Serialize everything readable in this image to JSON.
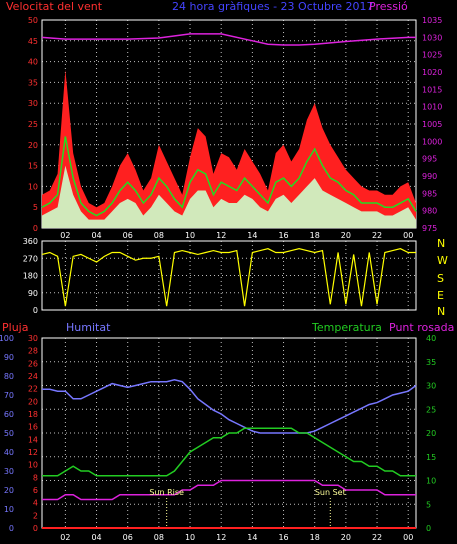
{
  "header": {
    "wind_label": "Velocitat del vent",
    "title": "24 hora gràfiques - 23 Octubre 2017",
    "pressure_label": "Pressió"
  },
  "colors": {
    "background": "#000000",
    "grid": "#ffffff",
    "wind_gust": "#ff2020",
    "wind_avg": "#22dd22",
    "wind_now": "#ccffcc",
    "pressure": "#dd22dd",
    "direction": "#ffff00",
    "rain": "#ff2020",
    "humidity": "#7777ff",
    "temperature": "#22cc22",
    "dewpoint": "#dd22dd",
    "sun": "#ffff99"
  },
  "chart_data": [
    {
      "name": "wind",
      "type": "area",
      "y_left_ticks": [
        "0",
        "5",
        "10",
        "15",
        "20",
        "25",
        "30",
        "35",
        "40",
        "45",
        "50"
      ],
      "y_right_ticks": [
        "975",
        "980",
        "985",
        "990",
        "995",
        "1000",
        "1005",
        "1010",
        "1015",
        "1020",
        "1025",
        "1030",
        "1035"
      ],
      "ylim": [
        0,
        50
      ],
      "ylim_right": [
        975,
        1035
      ],
      "x_ticks": [
        "02",
        "04",
        "06",
        "08",
        "10",
        "12",
        "14",
        "16",
        "18",
        "20",
        "22",
        "00"
      ],
      "x_tick_hours": [
        2,
        4,
        6,
        8,
        10,
        12,
        14,
        16,
        18,
        20,
        22,
        24
      ],
      "xlim_hours": [
        0.5,
        24.5
      ],
      "series": [
        {
          "name": "gust",
          "x": [
            0.5,
            1,
            1.5,
            2,
            2.5,
            3,
            3.5,
            4,
            4.5,
            5,
            5.5,
            6,
            6.5,
            7,
            7.5,
            8,
            8.5,
            9,
            9.5,
            10,
            10.5,
            11,
            11.5,
            12,
            12.5,
            13,
            13.5,
            14,
            14.5,
            15,
            15.5,
            16,
            16.5,
            17,
            17.5,
            18,
            18.5,
            19,
            19.5,
            20,
            20.5,
            21,
            21.5,
            22,
            22.5,
            23,
            23.5,
            24,
            24.5
          ],
          "values": [
            8,
            9,
            13,
            38,
            18,
            10,
            6,
            5,
            6,
            10,
            15,
            18,
            14,
            9,
            12,
            20,
            16,
            12,
            8,
            17,
            24,
            22,
            13,
            18,
            17,
            14,
            19,
            16,
            13,
            9,
            18,
            20,
            16,
            19,
            26,
            30,
            24,
            20,
            17,
            14,
            12,
            10,
            9,
            9,
            8,
            8,
            10,
            11,
            6
          ]
        },
        {
          "name": "avg",
          "x": [
            0.5,
            1,
            1.5,
            2,
            2.5,
            3,
            3.5,
            4,
            4.5,
            5,
            5.5,
            6,
            6.5,
            7,
            7.5,
            8,
            8.5,
            9,
            9.5,
            10,
            10.5,
            11,
            11.5,
            12,
            12.5,
            13,
            13.5,
            14,
            14.5,
            15,
            15.5,
            16,
            16.5,
            17,
            17.5,
            18,
            18.5,
            19,
            19.5,
            20,
            20.5,
            21,
            21.5,
            22,
            22.5,
            23,
            23.5,
            24,
            24.5
          ],
          "values": [
            5,
            6,
            8,
            22,
            12,
            6,
            4,
            3,
            4,
            6,
            9,
            11,
            9,
            6,
            8,
            12,
            10,
            7,
            5,
            11,
            14,
            13,
            8,
            11,
            10,
            9,
            12,
            10,
            8,
            6,
            11,
            12,
            10,
            12,
            16,
            19,
            15,
            12,
            11,
            9,
            8,
            6,
            6,
            6,
            5,
            5,
            6,
            7,
            4
          ]
        },
        {
          "name": "now",
          "x": [
            0.5,
            1,
            1.5,
            2,
            2.5,
            3,
            3.5,
            4,
            4.5,
            5,
            5.5,
            6,
            6.5,
            7,
            7.5,
            8,
            8.5,
            9,
            9.5,
            10,
            10.5,
            11,
            11.5,
            12,
            12.5,
            13,
            13.5,
            14,
            14.5,
            15,
            15.5,
            16,
            16.5,
            17,
            17.5,
            18,
            18.5,
            19,
            19.5,
            20,
            20.5,
            21,
            21.5,
            22,
            22.5,
            23,
            23.5,
            24,
            24.5
          ],
          "values": [
            3,
            4,
            5,
            15,
            8,
            4,
            2,
            2,
            2,
            4,
            6,
            7,
            6,
            3,
            5,
            8,
            6,
            4,
            3,
            7,
            9,
            9,
            5,
            7,
            6,
            6,
            8,
            7,
            5,
            4,
            7,
            8,
            6,
            8,
            10,
            12,
            9,
            8,
            7,
            6,
            5,
            4,
            4,
            4,
            3,
            3,
            4,
            5,
            2
          ]
        },
        {
          "name": "pressure",
          "x": [
            0.5,
            2,
            4,
            6,
            8,
            10,
            12,
            14,
            15,
            16,
            17,
            18,
            20,
            22,
            24,
            24.5
          ],
          "values": [
            1030,
            1029.5,
            1029.5,
            1029.5,
            1029.8,
            1031,
            1031,
            1029,
            1028,
            1027.8,
            1027.8,
            1028,
            1028.8,
            1029.5,
            1030,
            1030
          ]
        }
      ]
    },
    {
      "name": "direction",
      "type": "line",
      "y_ticks": [
        "0",
        "90",
        "180",
        "270",
        "360"
      ],
      "compass_labels": [
        "N",
        "W",
        "S",
        "E",
        "N"
      ],
      "ylim": [
        0,
        360
      ],
      "x": [
        0.5,
        1,
        1.5,
        2,
        2.5,
        3,
        3.5,
        4,
        4.5,
        5,
        5.5,
        6,
        6.5,
        7,
        7.5,
        8,
        8.5,
        9,
        9.5,
        10,
        10.5,
        11,
        11.5,
        12,
        12.5,
        13,
        13.5,
        14,
        14.5,
        15,
        15.5,
        16,
        16.5,
        17,
        17.5,
        18,
        18.5,
        19,
        19.5,
        20,
        20.5,
        21,
        21.5,
        22,
        22.5,
        23,
        23.5,
        24,
        24.5
      ],
      "values": [
        290,
        300,
        280,
        20,
        280,
        290,
        270,
        250,
        280,
        300,
        300,
        280,
        260,
        270,
        270,
        280,
        20,
        300,
        310,
        300,
        290,
        300,
        310,
        300,
        300,
        310,
        20,
        300,
        310,
        320,
        300,
        300,
        310,
        320,
        310,
        300,
        310,
        30,
        300,
        30,
        290,
        20,
        300,
        30,
        300,
        310,
        320,
        300,
        300
      ]
    },
    {
      "name": "climate",
      "type": "line",
      "left_labels": [
        "Pluja",
        "Humitat"
      ],
      "right_labels": [
        "Temperatura",
        "Punt rosada"
      ],
      "y_left1_ticks": [
        "0",
        "10",
        "20",
        "30",
        "40",
        "50",
        "60",
        "70",
        "80",
        "90",
        "100"
      ],
      "y_left2_ticks": [
        "0",
        "2",
        "4",
        "6",
        "8",
        "10",
        "12",
        "14",
        "16",
        "18",
        "20",
        "22",
        "24",
        "26",
        "28",
        "30"
      ],
      "y_right_ticks": [
        "0",
        "5",
        "10",
        "15",
        "20",
        "25",
        "30",
        "35",
        "40"
      ],
      "ylim_humidity": [
        0,
        100
      ],
      "ylim_temp": [
        0,
        40
      ],
      "x": [
        0.5,
        1,
        1.5,
        2,
        2.5,
        3,
        3.5,
        4,
        4.5,
        5,
        5.5,
        6,
        6.5,
        7,
        7.5,
        8,
        8.5,
        9,
        9.5,
        10,
        10.5,
        11,
        11.5,
        12,
        12.5,
        13,
        13.5,
        14,
        14.5,
        15,
        15.5,
        16,
        16.5,
        17,
        17.5,
        18,
        18.5,
        19,
        19.5,
        20,
        20.5,
        21,
        21.5,
        22,
        22.5,
        23,
        23.5,
        24,
        24.5
      ],
      "series": [
        {
          "name": "humidity",
          "values": [
            73,
            73,
            72,
            72,
            68,
            68,
            70,
            72,
            74,
            76,
            75,
            74,
            75,
            76,
            77,
            77,
            77,
            78,
            77,
            73,
            68,
            65,
            62,
            60,
            57,
            55,
            53,
            51,
            50,
            50,
            50,
            50,
            50,
            50,
            50,
            51,
            53,
            55,
            57,
            59,
            61,
            63,
            65,
            66,
            68,
            70,
            71,
            72,
            75
          ]
        },
        {
          "name": "temperature",
          "values": [
            11,
            11,
            11,
            12,
            13,
            12,
            12,
            11,
            11,
            11,
            11,
            11,
            11,
            11,
            11,
            11,
            11,
            12,
            14,
            16,
            17,
            18,
            19,
            19,
            20,
            20,
            21,
            21,
            21,
            21,
            21,
            21,
            21,
            20,
            20,
            19,
            18,
            17,
            16,
            15,
            14,
            14,
            13,
            13,
            12,
            12,
            11,
            11,
            11
          ]
        },
        {
          "name": "dewpoint",
          "values": [
            6,
            6,
            6,
            7,
            7,
            6,
            6,
            6,
            6,
            6,
            7,
            7,
            7,
            7,
            7,
            7,
            7,
            7,
            8,
            8,
            9,
            9,
            9,
            10,
            10,
            10,
            10,
            10,
            10,
            10,
            10,
            10,
            10,
            10,
            10,
            10,
            9,
            9,
            9,
            8,
            8,
            8,
            8,
            8,
            7,
            7,
            7,
            7,
            7
          ]
        },
        {
          "name": "rain",
          "values": [
            0,
            0,
            0,
            0,
            0,
            0,
            0,
            0,
            0,
            0,
            0,
            0,
            0,
            0,
            0,
            0,
            0,
            0,
            0,
            0,
            0,
            0,
            0,
            0,
            0,
            0,
            0,
            0,
            0,
            0,
            0,
            0,
            0,
            0,
            0,
            0,
            0,
            0,
            0,
            0,
            0,
            0,
            0,
            0,
            0,
            0,
            0,
            0,
            0
          ]
        }
      ],
      "annotations": [
        {
          "text": "Sun Rise",
          "x": 8.5
        },
        {
          "text": "Sun Set",
          "x": 19
        }
      ]
    }
  ]
}
